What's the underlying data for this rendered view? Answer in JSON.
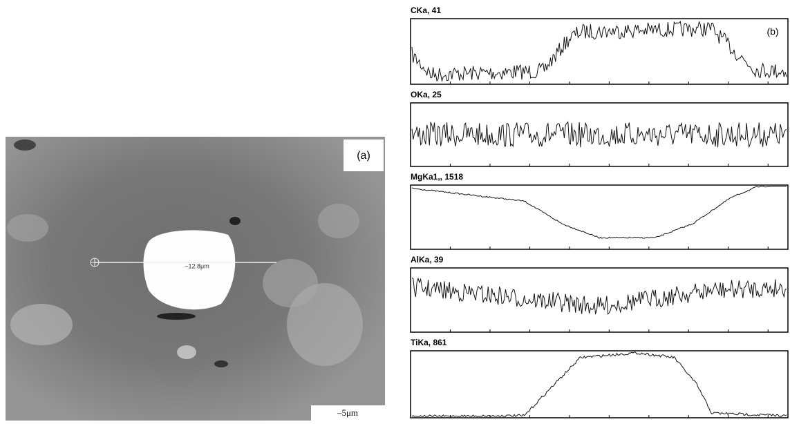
{
  "panel_a": {
    "label": "(a)",
    "measure": "~12.8μm",
    "scale": "–5μm"
  },
  "panel_b": {
    "label": "(b)",
    "traces": [
      "CKa, 41",
      "OKa, 25",
      "MgKa1,, 1518",
      "AlKa, 39",
      "TiKa, 861"
    ]
  }
}
